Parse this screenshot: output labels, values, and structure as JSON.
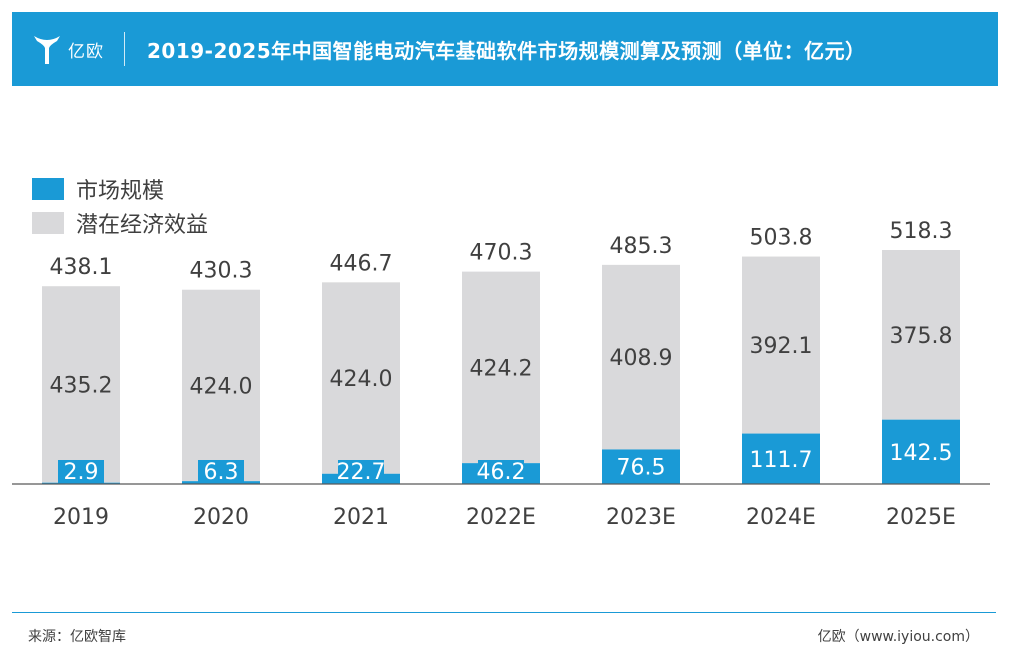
{
  "header": {
    "brand": "亿欧",
    "title": "2019-2025年中国智能电动汽车基础软件市场规模测算及预测（单位：亿元）",
    "color": "#1a9ad6"
  },
  "legend": [
    {
      "label": "市场规模",
      "color": "#1a9ad6"
    },
    {
      "label": "潜在经济效益",
      "color": "#d9d9db"
    }
  ],
  "chart_data": {
    "type": "bar",
    "stacked": true,
    "categories": [
      "2019",
      "2020",
      "2021",
      "2022E",
      "2023E",
      "2024E",
      "2025E"
    ],
    "series": [
      {
        "name": "市场规模",
        "values": [
          2.9,
          6.3,
          22.7,
          46.2,
          76.5,
          111.7,
          142.5
        ],
        "color": "#1a9ad6"
      },
      {
        "name": "潜在经济效益",
        "values": [
          435.2,
          424.0,
          424.0,
          424.2,
          408.9,
          392.1,
          375.8
        ],
        "color": "#d9d9db"
      }
    ],
    "value_labels_market": [
      "2.9",
      "6.3",
      "22.7",
      "46.2",
      "76.5",
      "111.7",
      "142.5"
    ],
    "value_labels_potential": [
      "435.2",
      "424.0",
      "424.0",
      "424.2",
      "408.9",
      "392.1",
      "375.8"
    ],
    "totals": [
      "438.1",
      "430.3",
      "446.7",
      "470.3",
      "485.3",
      "503.8",
      "518.3"
    ],
    "title": "2019-2025年中国智能电动汽车基础软件市场规模测算及预测（单位：亿元）",
    "xlabel": "",
    "ylabel": "",
    "ylim": [
      0,
      520
    ],
    "grid": false,
    "legend_position": "top-left"
  },
  "footer": {
    "source": "来源：亿欧智库",
    "site": "亿欧（www.iyiou.com）"
  }
}
